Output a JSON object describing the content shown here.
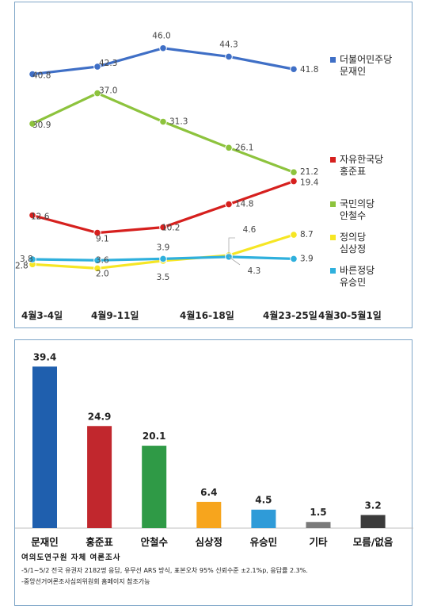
{
  "chart_data": [
    {
      "type": "line",
      "categories": [
        "4월3-4일",
        "4월9-11일",
        "4월16-18일",
        "4월23-25일",
        "4월30-5월1일"
      ],
      "ylim": [
        0,
        50
      ],
      "grid": false,
      "legend_position": "right",
      "series": [
        {
          "name": "더불어민주당\n문재인",
          "color": "#3f6fc6",
          "values": [
            40.8,
            42.3,
            46.0,
            44.3,
            41.8
          ],
          "labels": [
            "40.8",
            "42.3",
            "46.0",
            "44.3",
            "41.8"
          ]
        },
        {
          "name": "국민의당\n안철수",
          "color": "#8dc33d",
          "values": [
            30.9,
            37.0,
            31.3,
            26.1,
            21.2
          ],
          "labels": [
            "30.9",
            "37.0",
            "31.3",
            "26.1",
            "21.2"
          ]
        },
        {
          "name": "자유한국당\n홍준표",
          "color": "#d6201e",
          "values": [
            12.6,
            9.1,
            10.2,
            14.8,
            19.4
          ],
          "labels": [
            "12.6",
            "9.1",
            "10.2",
            "14.8",
            "19.4"
          ]
        },
        {
          "name": "정의당\n심상정",
          "color": "#f6e624",
          "values": [
            2.8,
            2.0,
            3.5,
            4.6,
            8.7
          ],
          "labels": [
            "2.8",
            "2.0",
            "3.5",
            "4.6",
            "8.7"
          ]
        },
        {
          "name": "바른정당\n유승민",
          "color": "#2fb0dd",
          "values": [
            3.8,
            3.6,
            3.9,
            4.3,
            3.9
          ],
          "labels": [
            "3.8",
            "3.6",
            "3.9",
            "4.3",
            "3.9"
          ]
        }
      ],
      "legend_order": [
        "더불어민주당\n문재인",
        "자유한국당\n홍준표",
        "국민의당\n안철수",
        "정의당\n심상정",
        "바른정당\n유승민"
      ]
    },
    {
      "type": "bar",
      "categories": [
        "문재인",
        "홍준표",
        "안철수",
        "심상정",
        "유승민",
        "기타",
        "모름/없음"
      ],
      "values": [
        39.4,
        24.9,
        20.1,
        6.4,
        4.5,
        1.5,
        3.2
      ],
      "value_labels": [
        "39.4",
        "24.9",
        "20.1",
        "6.4",
        "4.5",
        "1.5",
        "3.2"
      ],
      "colors": [
        "#1f5fae",
        "#c1272d",
        "#2f9a46",
        "#f7a51d",
        "#2f9bd8",
        "#7a7a7a",
        "#3b3b3b"
      ],
      "ylim": [
        0,
        42
      ],
      "grid": false
    }
  ],
  "source": {
    "title": "여의도연구원 자체 여론조사",
    "line1": "-5/1~5/2 전국 유권자 2182명 응답, 유무선 ARS 방식, 표본오차 95% 신뢰수준 ±2.1%p, 응답률 2.3%.",
    "line2": "-중앙선거여론조사심의위원회 홈페이지 참조가능"
  }
}
